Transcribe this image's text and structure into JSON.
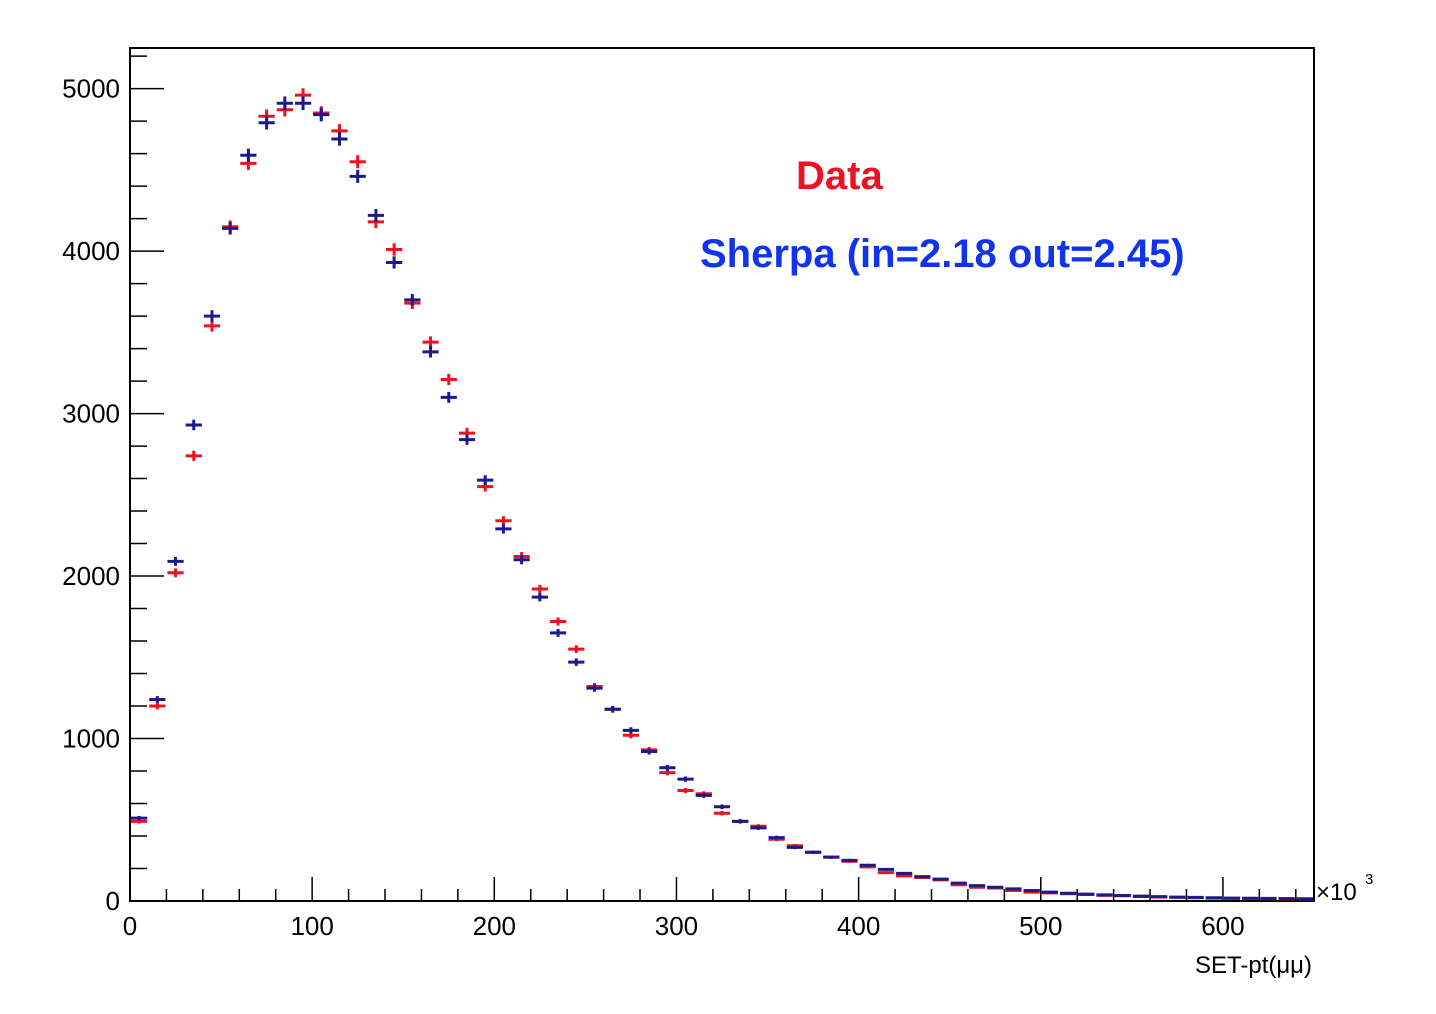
{
  "chart_data": {
    "type": "scatter",
    "xlabel": "SET-pt(μμ)",
    "x_multiplier_label": "×10",
    "x_multiplier_exp": "3",
    "xlim": [
      0,
      650
    ],
    "ylim": [
      0,
      5250
    ],
    "x_ticks": [
      0,
      100,
      200,
      300,
      400,
      500,
      600
    ],
    "y_ticks": [
      0,
      1000,
      2000,
      3000,
      4000,
      5000
    ],
    "bin_width": 10,
    "grid": false,
    "legend_placement": "top-right",
    "annotations": [
      {
        "text": "Data",
        "color": "#ee1122"
      },
      {
        "text": "Sherpa (in=2.18 out=2.45)",
        "color": "#1133ee"
      }
    ],
    "series": [
      {
        "name": "Data",
        "color": "#ee1122",
        "x": [
          5,
          15,
          25,
          35,
          45,
          55,
          65,
          75,
          85,
          95,
          105,
          115,
          125,
          135,
          145,
          155,
          165,
          175,
          185,
          195,
          205,
          215,
          225,
          235,
          245,
          255,
          265,
          275,
          285,
          295,
          305,
          315,
          325,
          335,
          345,
          355,
          365,
          375,
          385,
          395,
          405,
          415,
          425,
          435,
          445,
          455,
          465,
          475,
          485,
          495,
          505,
          515,
          525,
          535,
          545,
          555,
          565,
          575,
          585,
          595,
          605,
          615,
          625,
          635,
          645
        ],
        "values": [
          490,
          1200,
          2020,
          2740,
          3540,
          4150,
          4540,
          4830,
          4870,
          4960,
          4850,
          4740,
          4550,
          4180,
          4010,
          3680,
          3440,
          3210,
          2880,
          2550,
          2340,
          2120,
          1920,
          1720,
          1550,
          1320,
          1180,
          1020,
          930,
          790,
          680,
          660,
          540,
          490,
          460,
          380,
          340,
          300,
          270,
          245,
          210,
          175,
          155,
          145,
          130,
          100,
          85,
          80,
          65,
          55,
          50,
          45,
          40,
          35,
          32,
          28,
          25,
          22,
          20,
          18,
          16,
          15,
          14,
          13,
          12
        ]
      },
      {
        "name": "Sherpa (in=2.18 out=2.45)",
        "color": "#1a1a8e",
        "x": [
          5,
          15,
          25,
          35,
          45,
          55,
          65,
          75,
          85,
          95,
          105,
          115,
          125,
          135,
          145,
          155,
          165,
          175,
          185,
          195,
          205,
          215,
          225,
          235,
          245,
          255,
          265,
          275,
          285,
          295,
          305,
          315,
          325,
          335,
          345,
          355,
          365,
          375,
          385,
          395,
          405,
          415,
          425,
          435,
          445,
          455,
          465,
          475,
          485,
          495,
          505,
          515,
          525,
          535,
          545,
          555,
          565,
          575,
          585,
          595,
          605,
          615,
          625,
          635,
          645
        ],
        "values": [
          510,
          1240,
          2090,
          2930,
          3600,
          4140,
          4590,
          4790,
          4910,
          4910,
          4840,
          4690,
          4460,
          4220,
          3930,
          3700,
          3380,
          3100,
          2840,
          2590,
          2290,
          2100,
          1870,
          1650,
          1470,
          1310,
          1180,
          1050,
          920,
          820,
          750,
          650,
          580,
          490,
          450,
          390,
          330,
          300,
          270,
          250,
          220,
          195,
          170,
          150,
          135,
          110,
          95,
          85,
          75,
          65,
          55,
          48,
          42,
          38,
          34,
          30,
          27,
          24,
          22,
          20,
          18,
          17,
          16,
          15,
          14
        ]
      }
    ]
  }
}
